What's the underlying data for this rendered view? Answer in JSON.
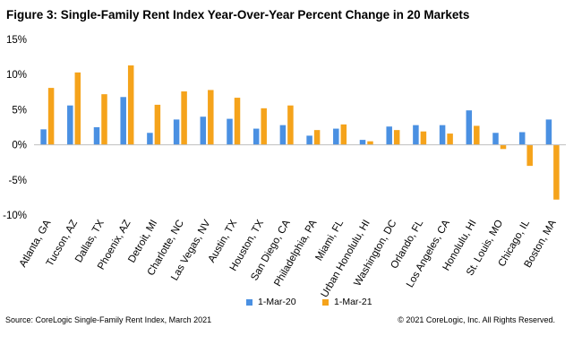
{
  "header": {
    "title": "Figure 3: Single-Family Rent Index Year-Over-Year Percent Change in 20 Markets"
  },
  "legend": {
    "series_a": "1-Mar-20",
    "series_b": "1-Mar-21"
  },
  "footer": {
    "source": "Source:  CoreLogic  Single-Family Rent Index, March 2021",
    "copyright": "© 2021 CoreLogic,  Inc. All Rights Reserved."
  },
  "colors": {
    "series_a": "#4a90e2",
    "series_b": "#f5a31b",
    "axis": "#bfbfbf"
  },
  "chart_data": {
    "type": "bar",
    "title": "Figure 3: Single-Family Rent Index Year-Over-Year Percent Change in 20 Markets",
    "xlabel": "",
    "ylabel": "",
    "ylim": [
      -10,
      15
    ],
    "yticks": [
      15,
      10,
      5,
      0,
      -5,
      -10
    ],
    "ytick_labels": [
      "15%",
      "10%",
      "5%",
      "0%",
      "-5%",
      "-10%"
    ],
    "grid": false,
    "legend_position": "bottom",
    "categories": [
      "Atlanta, GA",
      "Tucson, AZ",
      "Dallas, TX",
      "Phoenix, AZ",
      "Detroit, MI",
      "Charlotte, NC",
      "Las Vegas, NV",
      "Austin, TX",
      "Houston, TX",
      "San Diego, CA",
      "Philadelphia, PA",
      "Miami, FL",
      "Urban Honolulu, HI",
      "Washington, DC",
      "Orlando, FL",
      "Los Angeles, CA",
      "Honolulu, HI",
      "St. Louis, MO",
      "Chicago, IL",
      "Boston, MA"
    ],
    "series": [
      {
        "name": "1-Mar-20",
        "values": [
          2.2,
          5.6,
          2.5,
          6.8,
          1.7,
          3.6,
          4.0,
          3.7,
          2.3,
          2.8,
          1.3,
          2.3,
          0.7,
          2.6,
          2.8,
          2.8,
          4.9,
          1.7,
          1.8,
          3.6
        ]
      },
      {
        "name": "1-Mar-21",
        "values": [
          8.1,
          10.3,
          7.2,
          11.3,
          5.7,
          7.6,
          7.8,
          6.7,
          5.2,
          5.6,
          2.1,
          2.9,
          0.5,
          2.1,
          1.9,
          1.6,
          2.7,
          -0.6,
          -3.0,
          -7.8
        ]
      }
    ]
  }
}
